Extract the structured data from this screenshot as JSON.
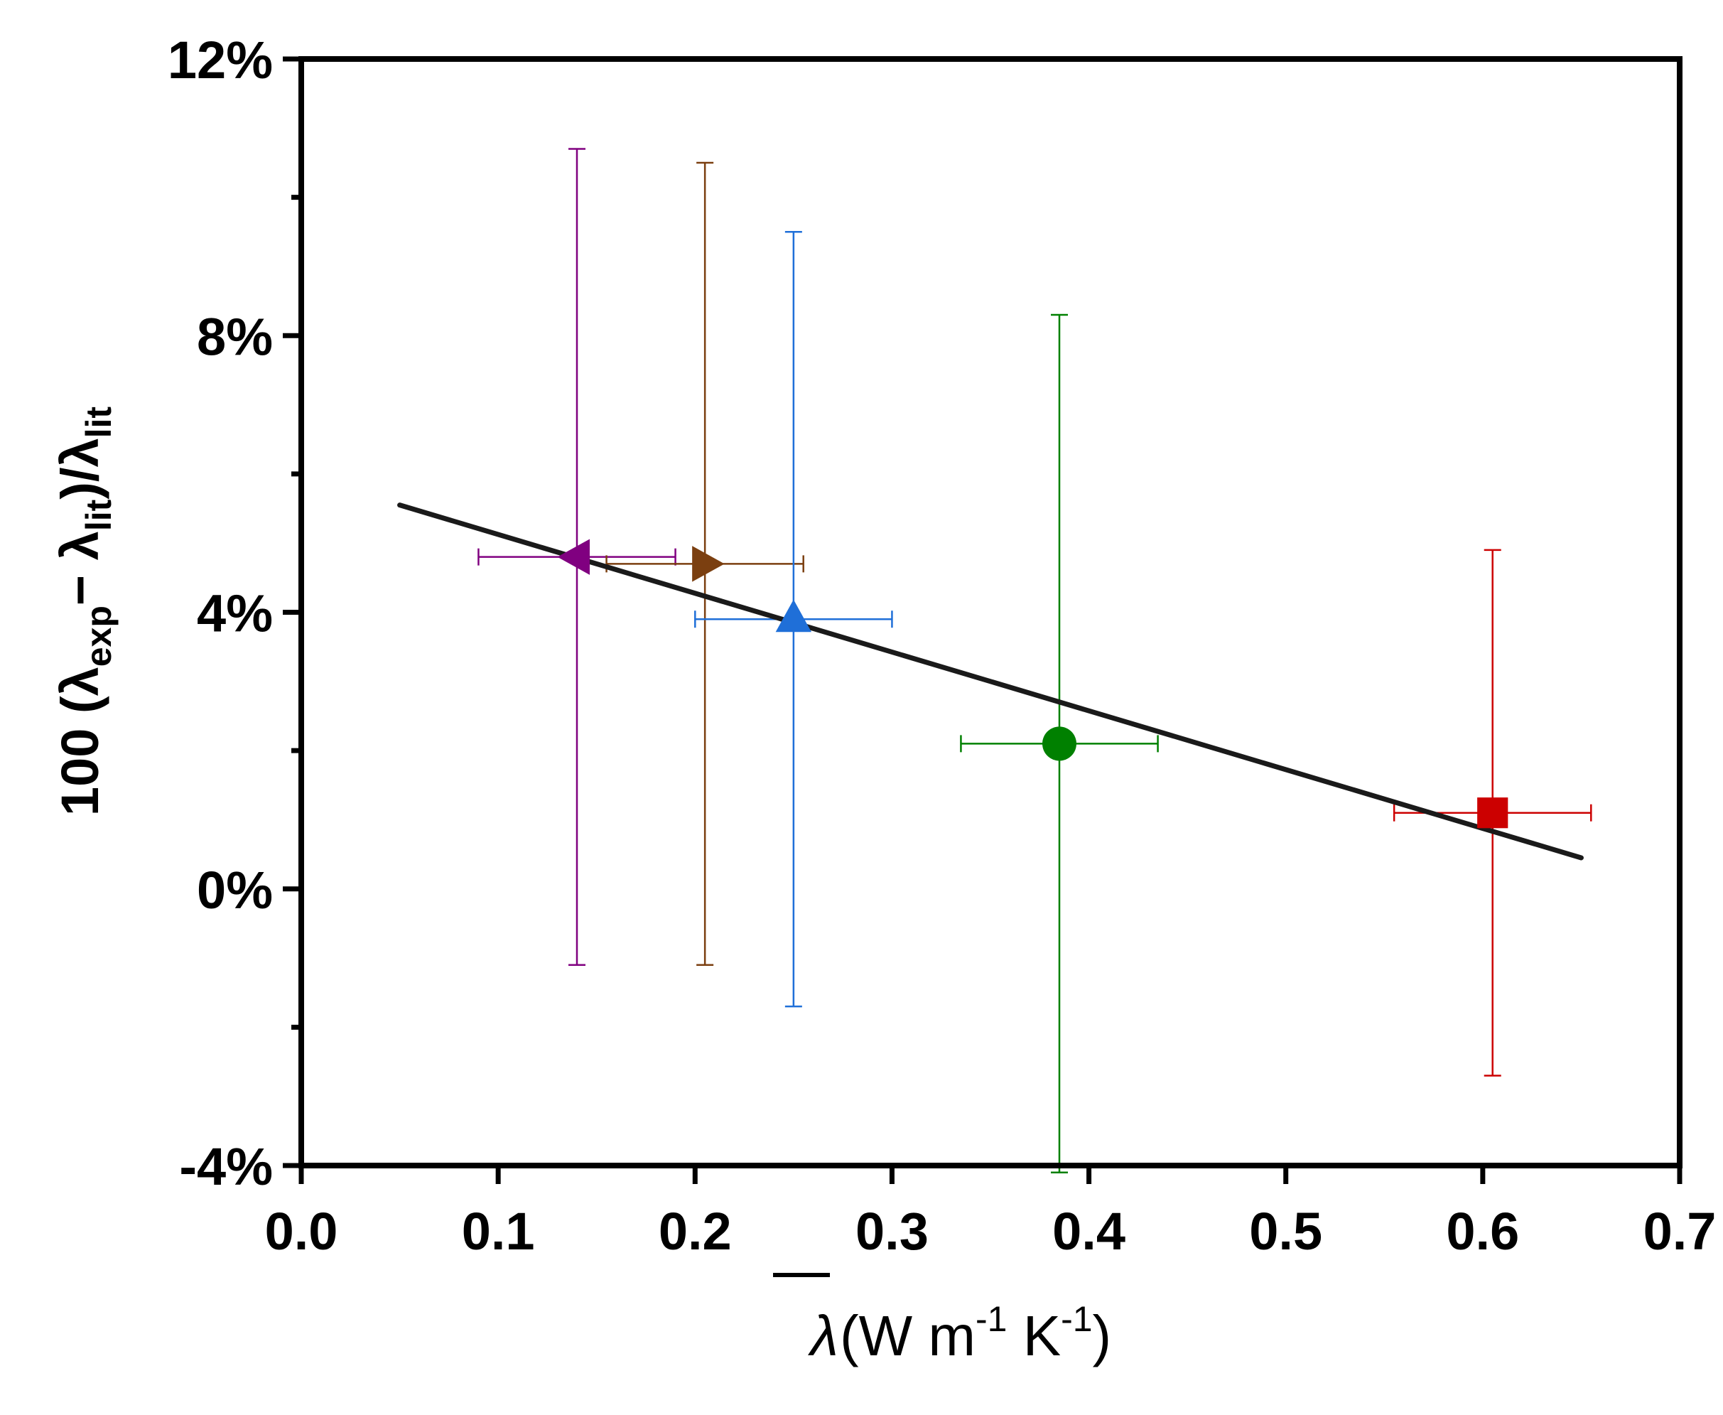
{
  "chart_data": {
    "type": "scatter",
    "title": "",
    "xlabel": {
      "symbol": "λ",
      "units_pre": "(W m",
      "exp1": "-1",
      "units_mid": " K",
      "exp2": "-1",
      "units_post": ")"
    },
    "ylabel": {
      "prefix": "100 (λ",
      "sub1": "exp",
      "minus": "− λ",
      "sub2": "lit",
      "mid": ")/λ",
      "sub3": "lit"
    },
    "xlim": [
      0.0,
      0.7
    ],
    "ylim": [
      -4,
      12
    ],
    "xticks": [
      0.0,
      0.1,
      0.2,
      0.3,
      0.4,
      0.5,
      0.6,
      0.7
    ],
    "xtick_labels": [
      "0.0",
      "0.1",
      "0.2",
      "0.3",
      "0.4",
      "0.5",
      "0.6",
      "0.7"
    ],
    "yticks": [
      -4,
      0,
      4,
      8,
      12
    ],
    "ytick_labels": [
      "-4%",
      "0%",
      "4%",
      "8%",
      "12%"
    ],
    "y_minor_ticks": [
      -2,
      2,
      6,
      10
    ],
    "grid": false,
    "points": [
      {
        "name": "left-triangle",
        "marker": "triangle-left",
        "color": "#800080",
        "x": 0.14,
        "y": 4.8,
        "xerr": 0.05,
        "yerr": 5.9
      },
      {
        "name": "right-triangle",
        "marker": "triangle-right",
        "color": "#7B3F10",
        "x": 0.205,
        "y": 4.7,
        "xerr": 0.05,
        "yerr": 5.8
      },
      {
        "name": "up-triangle",
        "marker": "triangle-up",
        "color": "#1F6FD8",
        "x": 0.25,
        "y": 3.9,
        "xerr": 0.05,
        "yerr": 5.6
      },
      {
        "name": "circle",
        "marker": "circle",
        "color": "#008000",
        "x": 0.385,
        "y": 2.1,
        "xerr": 0.05,
        "yerr": 6.2
      },
      {
        "name": "square",
        "marker": "square",
        "color": "#CC0000",
        "x": 0.605,
        "y": 1.1,
        "xerr": 0.05,
        "yerr": 3.8
      }
    ],
    "fit_line": {
      "color": "#1a1a1a",
      "x": [
        0.05,
        0.65
      ],
      "y": [
        5.55,
        0.45
      ]
    }
  }
}
